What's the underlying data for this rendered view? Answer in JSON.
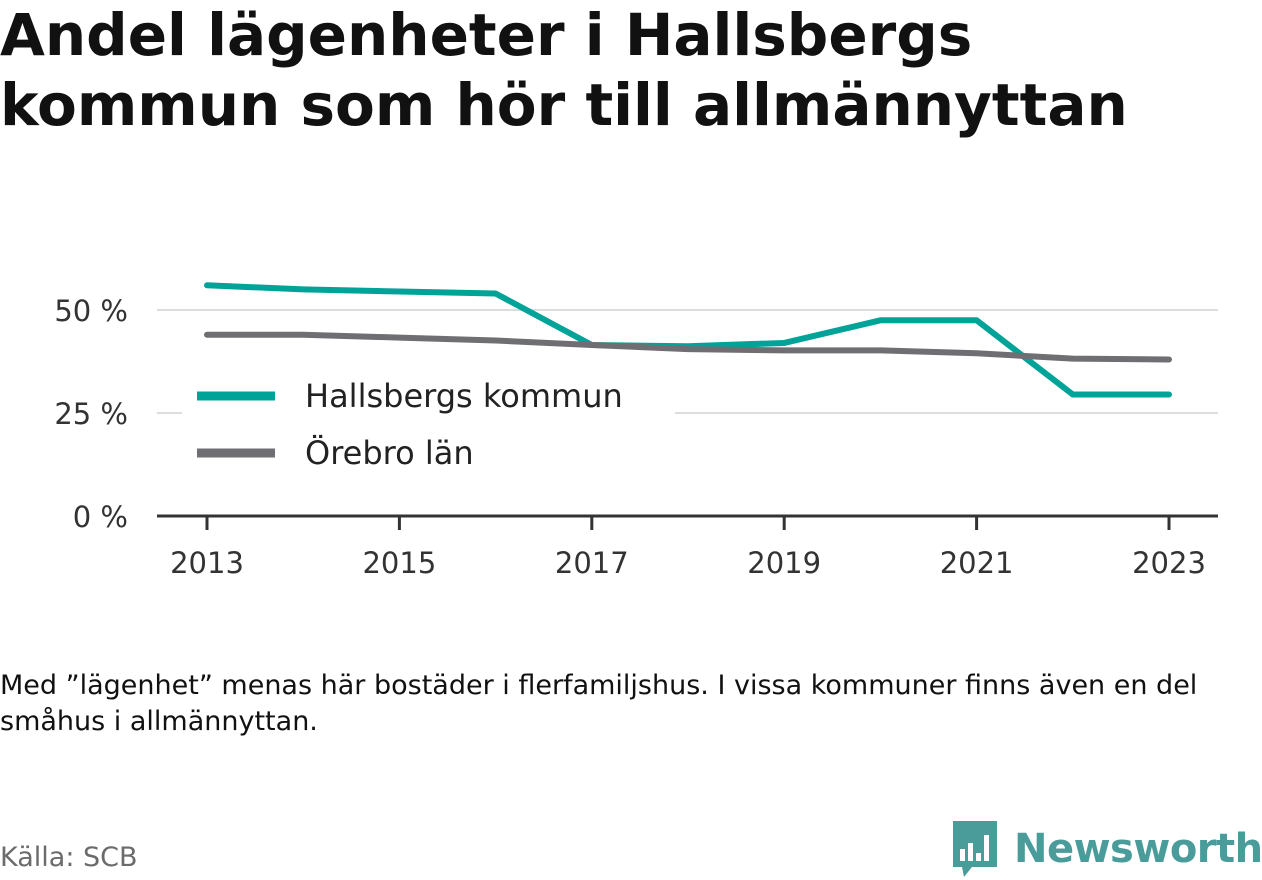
{
  "chart_data": {
    "type": "line",
    "title": "Andel lägenheter i Hallsbergs kommun som hör till allmännyttan",
    "x": [
      2013,
      2014,
      2015,
      2016,
      2017,
      2018,
      2019,
      2020,
      2021,
      2022,
      2023
    ],
    "x_tick_labels": [
      "2013",
      "2015",
      "2017",
      "2019",
      "2021",
      "2023"
    ],
    "y_tick_labels": [
      "0 %",
      "25 %",
      "50 %"
    ],
    "ylim": [
      0,
      60
    ],
    "grid": true,
    "legend_position": "left",
    "series": [
      {
        "name": "Hallsbergs kommun",
        "color": "#00a398",
        "values": [
          56.0,
          55.0,
          54.5,
          54.0,
          41.5,
          41.2,
          42.0,
          47.5,
          47.5,
          29.5,
          29.5
        ]
      },
      {
        "name": "Örebro län",
        "color": "#6f6e72",
        "values": [
          44.0,
          44.0,
          43.3,
          42.6,
          41.5,
          40.5,
          40.2,
          40.2,
          39.5,
          38.2,
          38.0
        ]
      }
    ]
  },
  "note": "Med ”lägenhet” menas här bostäder i flerfamiljshus. I vissa kommuner finns även en del småhus i allmännyttan.",
  "source": "Källa: SCB",
  "logo": {
    "name": "Newsworthy",
    "icon": "bar-chart-speech-bubble-icon",
    "color": "#4a9c9b"
  }
}
